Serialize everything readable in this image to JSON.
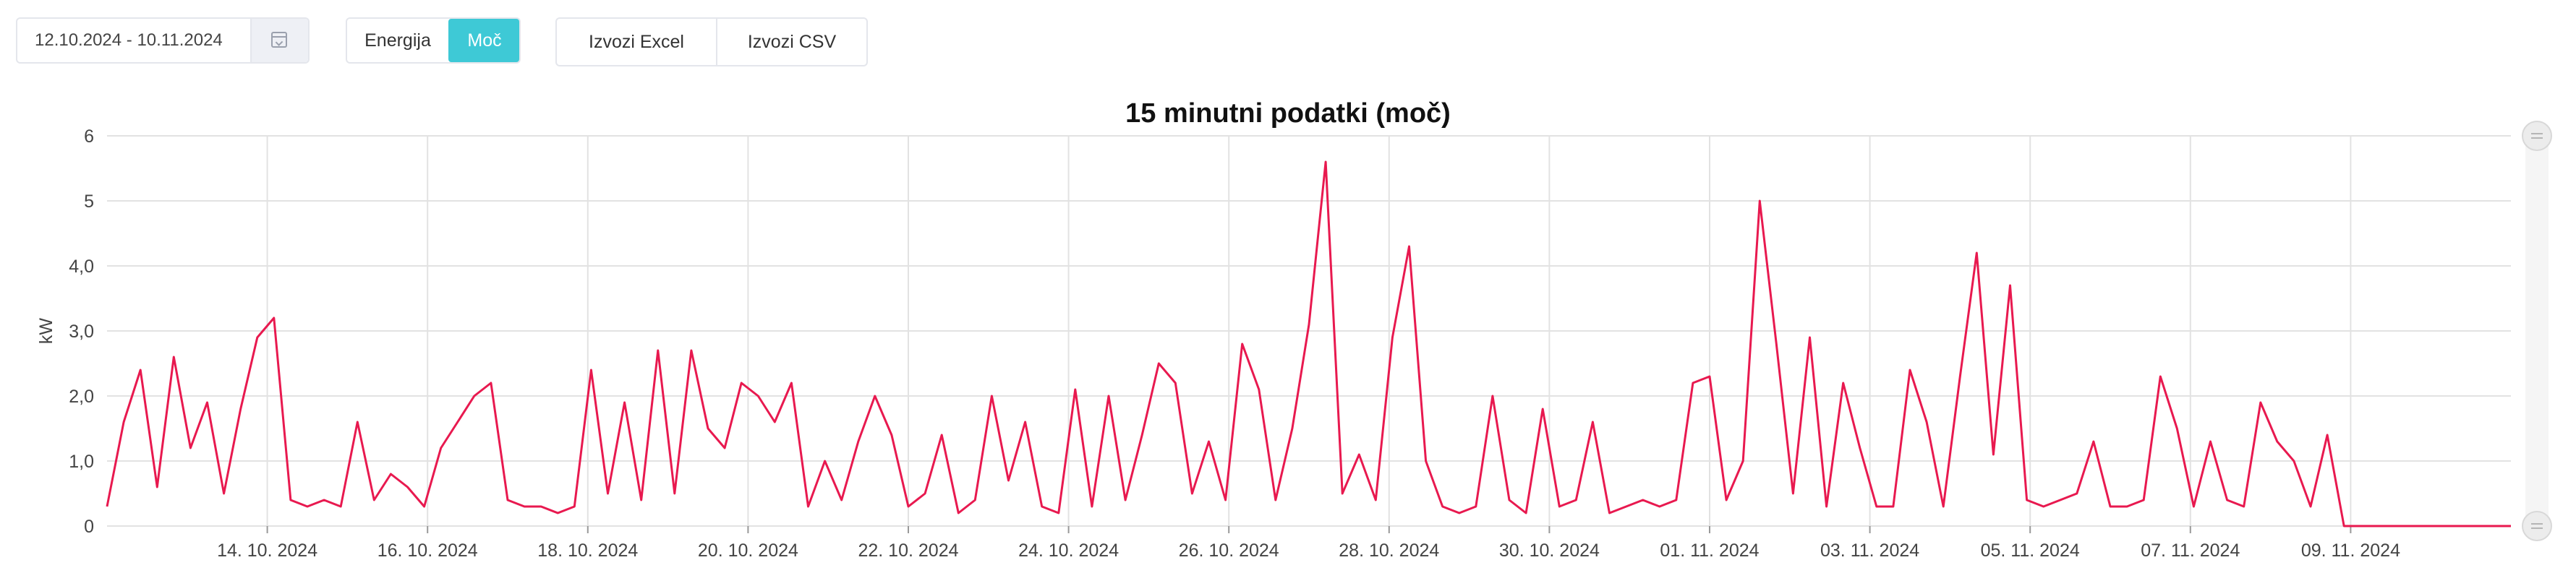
{
  "toolbar": {
    "date_range": "12.10.2024 - 10.11.2024",
    "mode_options": [
      "Energija",
      "Moč"
    ],
    "active_mode": "Moč",
    "export_excel": "Izvozi Excel",
    "export_csv": "Izvozi CSV"
  },
  "colors": {
    "accent": "#3ec9d6",
    "series": "#e8194f",
    "grid": "#e2e2e2"
  },
  "chart_data": {
    "type": "line",
    "title": "15 minutni podatki (moč)",
    "xlabel": "",
    "ylabel": "kW",
    "ylim": [
      0,
      6
    ],
    "yticks": [
      {
        "value": 0,
        "label": "0"
      },
      {
        "value": 1,
        "label": "1,0"
      },
      {
        "value": 2,
        "label": "2,0"
      },
      {
        "value": 3,
        "label": "3,0"
      },
      {
        "value": 4,
        "label": "4,0"
      },
      {
        "value": 5,
        "label": "5"
      },
      {
        "value": 6,
        "label": "6"
      }
    ],
    "xrange": [
      "2024-10-12",
      "2024-11-11"
    ],
    "xticks": [
      "14. 10. 2024",
      "16. 10. 2024",
      "18. 10. 2024",
      "20. 10. 2024",
      "22. 10. 2024",
      "24. 10. 2024",
      "26. 10. 2024",
      "28. 10. 2024",
      "30. 10. 2024",
      "01. 11. 2024",
      "03. 11. 2024",
      "05. 11. 2024",
      "07. 11. 2024",
      "09. 11. 2024"
    ],
    "grid": true,
    "legend": "none",
    "series": [
      {
        "x": [
          "2024-10-12 00:00",
          "2024-10-12 05:00",
          "2024-10-12 10:00",
          "2024-10-12 15:00",
          "2024-10-12 20:00",
          "2024-10-13 01:00",
          "2024-10-13 06:00",
          "2024-10-13 11:00",
          "2024-10-13 16:00",
          "2024-10-13 21:00",
          "2024-10-14 02:00",
          "2024-10-14 07:00",
          "2024-10-14 12:00",
          "2024-10-14 17:00",
          "2024-10-14 22:00",
          "2024-10-15 03:00",
          "2024-10-15 08:00",
          "2024-10-15 13:00",
          "2024-10-15 18:00",
          "2024-10-15 23:00",
          "2024-10-16 04:00",
          "2024-10-16 09:00",
          "2024-10-16 14:00",
          "2024-10-16 19:00",
          "2024-10-17 00:00",
          "2024-10-17 05:00",
          "2024-10-17 10:00",
          "2024-10-17 15:00",
          "2024-10-17 20:00",
          "2024-10-18 01:00",
          "2024-10-18 06:00",
          "2024-10-18 11:00",
          "2024-10-18 16:00",
          "2024-10-18 21:00",
          "2024-10-19 02:00",
          "2024-10-19 07:00",
          "2024-10-19 12:00",
          "2024-10-19 17:00",
          "2024-10-19 22:00",
          "2024-10-20 03:00",
          "2024-10-20 08:00",
          "2024-10-20 13:00",
          "2024-10-20 18:00",
          "2024-10-20 23:00",
          "2024-10-21 04:00",
          "2024-10-21 09:00",
          "2024-10-21 14:00",
          "2024-10-21 19:00",
          "2024-10-22 00:00",
          "2024-10-22 05:00",
          "2024-10-22 10:00",
          "2024-10-22 15:00",
          "2024-10-22 20:00",
          "2024-10-23 01:00",
          "2024-10-23 06:00",
          "2024-10-23 11:00",
          "2024-10-23 16:00",
          "2024-10-23 21:00",
          "2024-10-24 02:00",
          "2024-10-24 07:00",
          "2024-10-24 12:00",
          "2024-10-24 17:00",
          "2024-10-24 22:00",
          "2024-10-25 03:00",
          "2024-10-25 08:00",
          "2024-10-25 13:00",
          "2024-10-25 18:00",
          "2024-10-25 23:00",
          "2024-10-26 04:00",
          "2024-10-26 09:00",
          "2024-10-26 14:00",
          "2024-10-26 19:00",
          "2024-10-27 00:00",
          "2024-10-27 05:00",
          "2024-10-27 10:00",
          "2024-10-27 15:00",
          "2024-10-27 20:00",
          "2024-10-28 01:00",
          "2024-10-28 06:00",
          "2024-10-28 11:00",
          "2024-10-28 16:00",
          "2024-10-28 21:00",
          "2024-10-29 02:00",
          "2024-10-29 07:00",
          "2024-10-29 12:00",
          "2024-10-29 17:00",
          "2024-10-29 22:00",
          "2024-10-30 03:00",
          "2024-10-30 08:00",
          "2024-10-30 13:00",
          "2024-10-30 18:00",
          "2024-10-30 23:00",
          "2024-10-31 04:00",
          "2024-10-31 09:00",
          "2024-10-31 14:00",
          "2024-10-31 19:00",
          "2024-11-01 00:00",
          "2024-11-01 05:00",
          "2024-11-01 10:00",
          "2024-11-01 15:00",
          "2024-11-01 20:00",
          "2024-11-02 01:00",
          "2024-11-02 06:00",
          "2024-11-02 11:00",
          "2024-11-02 16:00",
          "2024-11-02 21:00",
          "2024-11-03 02:00",
          "2024-11-03 07:00",
          "2024-11-03 12:00",
          "2024-11-03 17:00",
          "2024-11-03 22:00",
          "2024-11-04 03:00",
          "2024-11-04 08:00",
          "2024-11-04 13:00",
          "2024-11-04 18:00",
          "2024-11-04 23:00",
          "2024-11-05 04:00",
          "2024-11-05 09:00",
          "2024-11-05 14:00",
          "2024-11-05 19:00",
          "2024-11-06 00:00",
          "2024-11-06 05:00",
          "2024-11-06 10:00",
          "2024-11-06 15:00",
          "2024-11-06 20:00",
          "2024-11-07 01:00",
          "2024-11-07 06:00",
          "2024-11-07 11:00",
          "2024-11-07 16:00",
          "2024-11-07 21:00",
          "2024-11-08 02:00",
          "2024-11-08 07:00",
          "2024-11-08 12:00",
          "2024-11-08 17:00",
          "2024-11-08 22:00",
          "2024-11-09 03:00",
          "2024-11-09 08:00",
          "2024-11-09 13:00",
          "2024-11-09 18:00",
          "2024-11-09 23:00",
          "2024-11-10 04:00",
          "2024-11-10 09:00",
          "2024-11-10 14:00",
          "2024-11-10 19:00",
          "2024-11-11 00:00"
        ],
        "y": [
          0.3,
          1.6,
          2.4,
          0.6,
          2.6,
          1.2,
          1.9,
          0.5,
          1.8,
          2.9,
          3.2,
          0.4,
          0.3,
          0.4,
          0.3,
          1.6,
          0.4,
          0.8,
          0.6,
          0.3,
          1.2,
          1.6,
          2.0,
          2.2,
          0.4,
          0.3,
          0.3,
          0.2,
          0.3,
          2.4,
          0.5,
          1.9,
          0.4,
          2.7,
          0.5,
          2.7,
          1.5,
          1.2,
          2.2,
          2.0,
          1.6,
          2.2,
          0.3,
          1.0,
          0.4,
          1.3,
          2.0,
          1.4,
          0.3,
          0.5,
          1.4,
          0.2,
          0.4,
          2.0,
          0.7,
          1.6,
          0.3,
          0.2,
          2.1,
          0.3,
          2.0,
          0.4,
          1.4,
          2.5,
          2.2,
          0.5,
          1.3,
          0.4,
          2.8,
          2.1,
          0.4,
          1.5,
          3.1,
          5.6,
          0.5,
          1.1,
          0.4,
          2.9,
          4.3,
          1.0,
          0.3,
          0.2,
          0.3,
          2.0,
          0.4,
          0.2,
          1.8,
          0.3,
          0.4,
          1.6,
          0.2,
          0.3,
          0.4,
          0.3,
          0.4,
          2.2,
          2.3,
          0.4,
          1.0,
          5.0,
          2.8,
          0.5,
          2.9,
          0.3,
          2.2,
          1.2,
          0.3,
          0.3,
          2.4,
          1.6,
          0.3,
          2.3,
          4.2,
          1.1,
          3.7,
          0.4,
          0.3,
          0.4,
          0.5,
          1.3,
          0.3,
          0.3,
          0.4,
          2.3,
          1.5,
          0.3,
          1.3,
          0.4,
          0.3,
          1.9,
          1.3,
          1.0,
          0.3,
          1.4,
          0,
          0,
          0,
          0,
          0,
          0,
          0,
          0,
          0,
          0,
          0
        ]
      }
    ]
  }
}
